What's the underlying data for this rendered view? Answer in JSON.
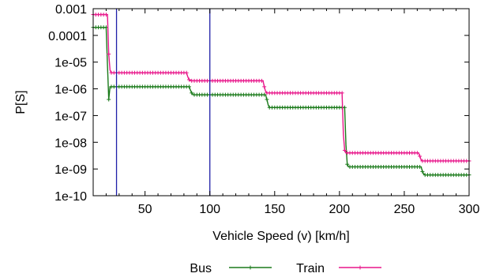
{
  "chart_data": {
    "type": "line",
    "xlabel": "Vehicle Speed (v) [km/h]",
    "ylabel": "P[S]",
    "xlim": [
      10,
      300
    ],
    "ylim": [
      1e-10,
      0.001
    ],
    "yscale": "log",
    "xticks": [
      50,
      100,
      150,
      200,
      250,
      300
    ],
    "xtick_labels": [
      "50",
      "100",
      "150",
      "200",
      "250",
      "300"
    ],
    "yticks": [
      1e-10,
      1e-09,
      1e-08,
      1e-07,
      1e-06,
      1e-05,
      0.0001,
      0.001
    ],
    "ytick_labels": [
      "1e-10",
      "1e-09",
      "1e-08",
      "1e-07",
      "1e-06",
      "1e-05",
      "0.0001",
      "0.001"
    ],
    "vertical_lines": [
      {
        "x": 28,
        "color": "#1f1fa8"
      },
      {
        "x": 100,
        "color": "#1f1fa8"
      }
    ],
    "legend_position": "bottom-center",
    "series": [
      {
        "name": "Bus",
        "color": "#1a7a1a",
        "marker": "+",
        "x": [
          10,
          20,
          21,
          22,
          23,
          84,
          85,
          86,
          87,
          143,
          144,
          145,
          146,
          204,
          205,
          206,
          207,
          263,
          264,
          265,
          266,
          300
        ],
        "y": [
          0.0002,
          0.0002,
          8e-06,
          4e-07,
          1.2e-06,
          1.2e-06,
          9e-07,
          7e-07,
          6e-07,
          6e-07,
          4e-07,
          2.5e-07,
          2e-07,
          2e-07,
          8e-09,
          1.5e-09,
          1.2e-09,
          1.2e-09,
          8e-10,
          6.5e-10,
          6e-10,
          6e-10
        ]
      },
      {
        "name": "Train",
        "color": "#e8168a",
        "marker": "+",
        "x": [
          10,
          21,
          22,
          23,
          24,
          82,
          83,
          84,
          85,
          141,
          142,
          143,
          144,
          202,
          203,
          204,
          205,
          261,
          262,
          263,
          264,
          300
        ],
        "y": [
          0.0006,
          0.0006,
          2e-05,
          5e-06,
          4e-06,
          4e-06,
          2.8e-06,
          2.2e-06,
          2e-06,
          2e-06,
          1.2e-06,
          8e-07,
          7e-07,
          7e-07,
          2e-08,
          5e-09,
          4e-09,
          4e-09,
          3e-09,
          2.2e-09,
          2e-09,
          2e-09
        ]
      }
    ]
  }
}
